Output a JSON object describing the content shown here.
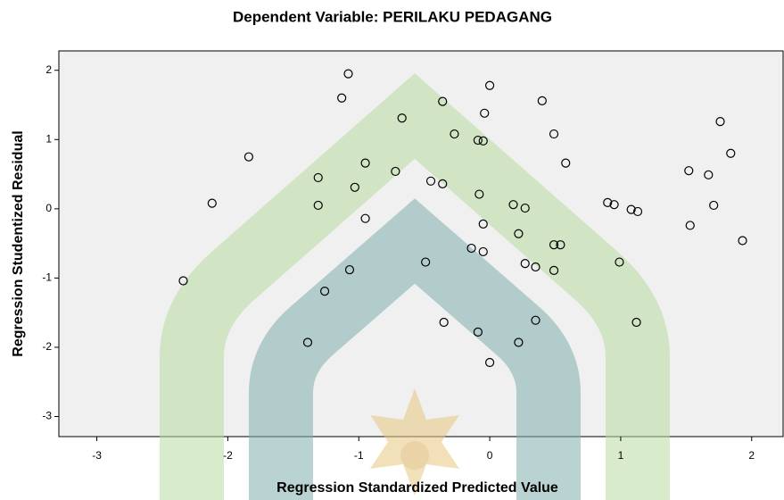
{
  "chart_data": {
    "type": "scatter",
    "title": "Dependent Variable: PERILAKU PEDAGANG",
    "x_label": "Regression Standardized Predicted Value",
    "y_label": "Regression Studentized Residual",
    "xlim": [
      -3.29,
      2.24
    ],
    "ylim": [
      -3.29,
      2.28
    ],
    "xticks": [
      -3,
      -2,
      -1,
      0,
      1,
      2
    ],
    "yticks": [
      -3,
      -2,
      -1,
      0,
      1,
      2
    ],
    "color": "#000000",
    "x": [
      -2.34,
      -2.12,
      -1.84,
      -1.39,
      -1.31,
      -1.31,
      -1.26,
      -1.13,
      -1.08,
      -1.07,
      -1.03,
      -0.95,
      -0.95,
      -0.72,
      -0.67,
      -0.49,
      -0.45,
      -0.36,
      -0.36,
      -0.35,
      -0.27,
      -0.14,
      -0.09,
      -0.08,
      -0.09,
      -0.04,
      -0.05,
      -0.05,
      -0.05,
      0.0,
      0.0,
      0.18,
      0.22,
      0.22,
      0.27,
      0.27,
      0.35,
      0.35,
      0.4,
      0.49,
      0.49,
      0.54,
      0.49,
      0.58,
      0.9,
      0.95,
      0.99,
      1.08,
      1.13,
      1.12,
      1.52,
      1.53,
      1.67,
      1.71,
      1.76,
      1.84,
      1.93
    ],
    "values": [
      -1.04,
      0.08,
      0.75,
      -1.93,
      0.45,
      0.05,
      -1.19,
      1.6,
      1.95,
      -0.88,
      0.31,
      0.66,
      -0.14,
      0.54,
      1.31,
      -0.77,
      0.4,
      0.36,
      1.55,
      -1.64,
      1.08,
      -0.57,
      0.99,
      0.21,
      -1.78,
      1.38,
      0.98,
      -0.22,
      -0.62,
      1.78,
      -2.22,
      0.06,
      -0.36,
      -1.93,
      0.01,
      -0.79,
      -0.84,
      -1.61,
      1.56,
      1.08,
      -0.52,
      -0.52,
      -0.89,
      0.66,
      0.09,
      0.06,
      -0.77,
      -0.01,
      -0.04,
      -1.64,
      0.55,
      -0.24,
      0.49,
      0.05,
      1.26,
      0.8,
      -0.46
    ]
  }
}
